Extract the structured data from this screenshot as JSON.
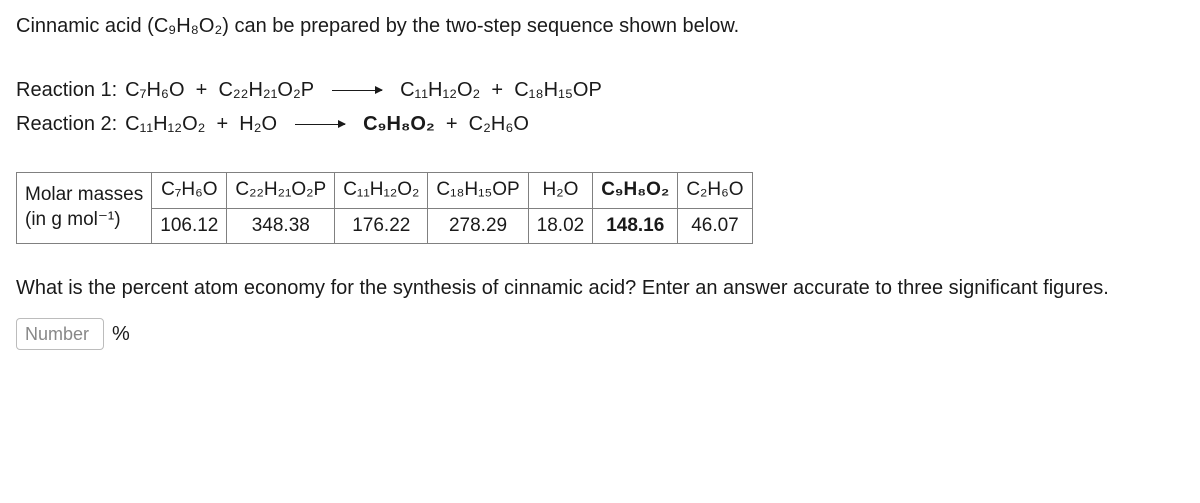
{
  "intro": "Cinnamic acid (C₉H₈O₂) can be prepared by the two-step sequence shown below.",
  "reaction1": {
    "label": "Reaction 1:",
    "lhs_a": "C₇H₆O",
    "plus1": "  +  ",
    "lhs_b": "C₂₂H₂₁O₂P",
    "rhs_a": "C₁₁H₁₂O₂",
    "plus2": "  +  ",
    "rhs_b": "C₁₈H₁₅OP"
  },
  "reaction2": {
    "label": "Reaction 2:",
    "lhs_a": "C₁₁H₁₂O₂",
    "plus1": "  +  ",
    "lhs_b": "H₂O",
    "rhs_a": "C₉H₈O₂",
    "plus2": "  +  ",
    "rhs_b": "C₂H₆O"
  },
  "table": {
    "row_header_line1": "Molar masses",
    "row_header_line2": "(in g mol⁻¹)",
    "headers": [
      "C₇H₆O",
      "C₂₂H₂₁O₂P",
      "C₁₁H₁₂O₂",
      "C₁₈H₁₅OP",
      "H₂O",
      "C₉H₈O₂",
      "C₂H₆O"
    ],
    "values": [
      "106.12",
      "348.38",
      "176.22",
      "278.29",
      "18.02",
      "148.16",
      "46.07"
    ],
    "bold_index": 5
  },
  "question": "What is the percent atom economy for the synthesis of cinnamic acid? Enter an answer accurate to three significant figures.",
  "answer": {
    "placeholder": "Number",
    "unit": "%"
  }
}
